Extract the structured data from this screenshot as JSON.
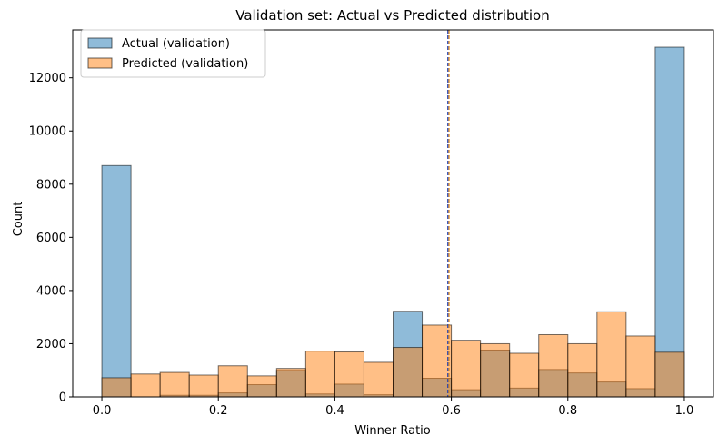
{
  "chart_data": {
    "type": "bar",
    "title": "Validation set: Actual vs Predicted distribution",
    "xlabel": "Winner Ratio",
    "ylabel": "Count",
    "xlim": [
      -0.05,
      1.05
    ],
    "ylim": [
      0,
      13800
    ],
    "xticks": [
      0.0,
      0.2,
      0.4,
      0.6,
      0.8,
      1.0
    ],
    "xtick_labels": [
      "0.0",
      "0.2",
      "0.4",
      "0.6",
      "0.8",
      "1.0"
    ],
    "yticks": [
      0,
      2000,
      4000,
      6000,
      8000,
      10000,
      12000
    ],
    "ytick_labels": [
      "0",
      "2000",
      "4000",
      "6000",
      "8000",
      "10000",
      "12000"
    ],
    "bin_edges": [
      0.0,
      0.05,
      0.1,
      0.15,
      0.2,
      0.25,
      0.3,
      0.35,
      0.4,
      0.45,
      0.5,
      0.55,
      0.6,
      0.65,
      0.7,
      0.75,
      0.8,
      0.85,
      0.9,
      0.95,
      1.0
    ],
    "series": [
      {
        "name": "Actual (validation)",
        "color": "#1f77b4",
        "values": [
          8700,
          0,
          60,
          60,
          150,
          460,
          1000,
          110,
          480,
          80,
          3220,
          700,
          270,
          1760,
          330,
          1030,
          900,
          560,
          310,
          13150
        ]
      },
      {
        "name": "Predicted (validation)",
        "color": "#ff7f0e",
        "values": [
          720,
          860,
          920,
          820,
          1170,
          790,
          1070,
          1720,
          1690,
          1300,
          1860,
          2700,
          2130,
          2000,
          1640,
          2340,
          2000,
          3200,
          2290,
          1680
        ]
      }
    ],
    "vlines": [
      {
        "x": 0.594,
        "color": "#1f3fb4"
      },
      {
        "x": 0.596,
        "color": "#e08a1a"
      }
    ],
    "legend_position": "upper-left",
    "grid": false
  }
}
